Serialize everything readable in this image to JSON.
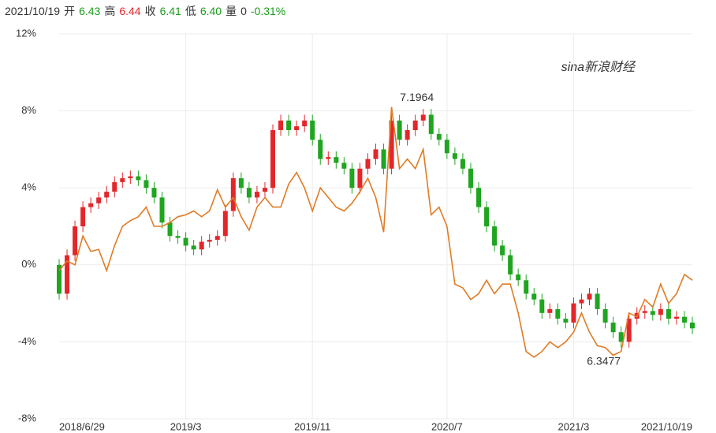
{
  "header": {
    "date": "2021/10/19",
    "items": [
      {
        "label": "开",
        "value": "6.43",
        "color": "#1a9c1a"
      },
      {
        "label": "高",
        "value": "6.44",
        "color": "#e3262a"
      },
      {
        "label": "收",
        "value": "6.41",
        "color": "#1a9c1a"
      },
      {
        "label": "低",
        "value": "6.40",
        "color": "#1a9c1a"
      },
      {
        "label": "量",
        "value": "0",
        "color": "#333333"
      }
    ],
    "change": "-0.31%",
    "change_color": "#1a9c1a"
  },
  "watermark": "sina新浪财经",
  "chart_data": {
    "type": "candlestick",
    "categories": [
      "2018/6/29",
      null,
      null,
      null,
      null,
      null,
      null,
      null,
      null,
      null,
      null,
      null,
      null,
      null,
      null,
      null,
      "2019/3",
      null,
      null,
      null,
      null,
      null,
      null,
      null,
      null,
      null,
      null,
      null,
      null,
      null,
      null,
      null,
      "2019/11",
      null,
      null,
      null,
      null,
      null,
      null,
      null,
      null,
      null,
      null,
      null,
      null,
      null,
      null,
      null,
      null,
      "2020/7",
      null,
      null,
      null,
      null,
      null,
      null,
      null,
      null,
      null,
      null,
      null,
      null,
      null,
      null,
      null,
      "2021/3",
      null,
      null,
      null,
      null,
      null,
      null,
      null,
      null,
      null,
      null,
      null,
      null,
      null,
      null,
      "2021/10/19"
    ],
    "open": [
      0,
      -1.5,
      0.5,
      2,
      3,
      3.2,
      3.5,
      3.8,
      4.3,
      4.5,
      4.6,
      4.4,
      4,
      3.5,
      2.2,
      1.5,
      1.4,
      1,
      0.8,
      1.2,
      1.3,
      1.5,
      2.8,
      4.5,
      4,
      3.5,
      3.8,
      4,
      7,
      7.5,
      7,
      7.2,
      7.5,
      6.5,
      5.5,
      5.6,
      5.3,
      5,
      4,
      5,
      5.5,
      6,
      5,
      7.5,
      6.5,
      7,
      7.5,
      7.8,
      6.8,
      6.5,
      5.8,
      5.5,
      5,
      4,
      3,
      2,
      1,
      0.5,
      -0.5,
      -0.8,
      -1.5,
      -1.8,
      -2.5,
      -2.3,
      -2.8,
      -3,
      -2,
      -1.8,
      -1.5,
      -2.3,
      -3,
      -3.5,
      -4,
      -2.8,
      -2.5,
      -2.4,
      -2.6,
      -2.3,
      -2.8,
      -2.7,
      -3
    ],
    "high": [
      0.3,
      0.8,
      2.3,
      3.3,
      3.5,
      3.8,
      4.1,
      4.6,
      4.8,
      4.9,
      4.9,
      4.7,
      4.3,
      3.8,
      2.5,
      1.8,
      1.7,
      1.3,
      1.5,
      1.6,
      1.8,
      3.1,
      4.8,
      4.8,
      4.3,
      4.1,
      4.3,
      7.3,
      7.8,
      7.8,
      7.5,
      7.8,
      7.8,
      6.8,
      5.9,
      5.9,
      5.6,
      5.3,
      5.3,
      5.8,
      6.3,
      6.3,
      7.8,
      7.8,
      7.3,
      7.8,
      8.1,
      8.1,
      7.1,
      6.8,
      6.1,
      5.8,
      5.3,
      4.3,
      3.3,
      2.3,
      1.3,
      0.8,
      -0.2,
      -0.5,
      -1.2,
      -1.5,
      -2,
      -2,
      -2.5,
      -1.7,
      -1.5,
      -1.2,
      -1.2,
      -2,
      -2.7,
      -3.2,
      -2.5,
      -2.2,
      -2.1,
      -2.1,
      -2,
      -2,
      -2.4,
      -2.4,
      -2.7
    ],
    "low": [
      -1.8,
      -1.8,
      0.2,
      1.7,
      2.7,
      2.9,
      3.2,
      3.5,
      4,
      4.2,
      4.1,
      3.7,
      3.2,
      1.9,
      1.2,
      1.1,
      0.7,
      0.5,
      0.5,
      0.9,
      1,
      1.2,
      2.5,
      3.7,
      3.2,
      3.2,
      3.5,
      3.7,
      6.7,
      6.7,
      6.7,
      6.9,
      6.2,
      5.2,
      5.2,
      5,
      4.7,
      3.7,
      3.7,
      4.7,
      5.2,
      4.7,
      4.7,
      6.2,
      6.2,
      6.7,
      7.2,
      6.5,
      6.2,
      5.5,
      5.2,
      4.7,
      3.7,
      2.7,
      1.7,
      0.7,
      0.2,
      -0.8,
      -1.1,
      -1.8,
      -2.1,
      -2.8,
      -2.8,
      -3.1,
      -3.3,
      -3.3,
      -2.3,
      -2.1,
      -2.6,
      -3.3,
      -3.8,
      -4.3,
      -4.3,
      -3.1,
      -2.8,
      -2.9,
      -2.9,
      -3.1,
      -3.1,
      -3.3,
      -3.6
    ],
    "close": [
      -1.5,
      0.5,
      2,
      3,
      3.2,
      3.5,
      3.8,
      4.3,
      4.5,
      4.6,
      4.4,
      4,
      3.5,
      2.2,
      1.5,
      1.4,
      1,
      0.8,
      1.2,
      1.3,
      1.5,
      2.8,
      4.5,
      4,
      3.5,
      3.8,
      4,
      7,
      7.5,
      7,
      7.2,
      7.5,
      6.5,
      5.5,
      5.6,
      5.3,
      5,
      4,
      5,
      5.5,
      6,
      5,
      7.5,
      6.5,
      7,
      7.5,
      7.8,
      6.8,
      6.5,
      5.8,
      5.5,
      5,
      4,
      3,
      2,
      1,
      0.5,
      -0.5,
      -0.8,
      -1.5,
      -1.8,
      -2.5,
      -2.3,
      -2.8,
      -3,
      -2,
      -1.8,
      -1.5,
      -2.3,
      -3,
      -3.5,
      -4,
      -2.8,
      -2.5,
      -2.4,
      -2.6,
      -2.3,
      -2.8,
      -2.7,
      -3,
      -3.3
    ],
    "up_color": "#e3262a",
    "down_color": "#1fa51f",
    "line": {
      "color": "#e07b24",
      "values": [
        -0.3,
        0.2,
        0,
        1.5,
        0.7,
        0.8,
        -0.3,
        1,
        2,
        2.3,
        2.5,
        3,
        2,
        2,
        2.2,
        2.5,
        2.6,
        2.8,
        2.5,
        2.8,
        3.9,
        3,
        3.5,
        2.5,
        1.8,
        3,
        3.5,
        3,
        3,
        4.2,
        4.8,
        4,
        2.8,
        4,
        3.5,
        3,
        2.8,
        3.2,
        3.8,
        4.5,
        3.5,
        1.7,
        8.2,
        5,
        5.5,
        5,
        6,
        2.6,
        3,
        2,
        -1,
        -1.2,
        -1.8,
        -1.5,
        -0.8,
        -1.5,
        -1,
        -1,
        -2.5,
        -4.5,
        -4.8,
        -4.5,
        -4,
        -4.3,
        -4,
        -3.5,
        -2.5,
        -3.5,
        -4.2,
        -4.3,
        -4.7,
        -4.5,
        -2.5,
        -2.7,
        -1.8,
        -2.2,
        -1,
        -2,
        -1.5,
        -0.5,
        -0.8
      ]
    },
    "annotations": {
      "max": 7.1964,
      "min": 6.3477
    },
    "ylim": [
      -8,
      12
    ],
    "yticks": [
      {
        "value": 12,
        "label": "12%"
      },
      {
        "value": 8,
        "label": "8%"
      },
      {
        "value": 4,
        "label": "4%"
      },
      {
        "value": 0,
        "label": "0%"
      },
      {
        "value": -4,
        "label": "-4%"
      },
      {
        "value": -8,
        "label": "-8%"
      }
    ],
    "grid": true
  }
}
